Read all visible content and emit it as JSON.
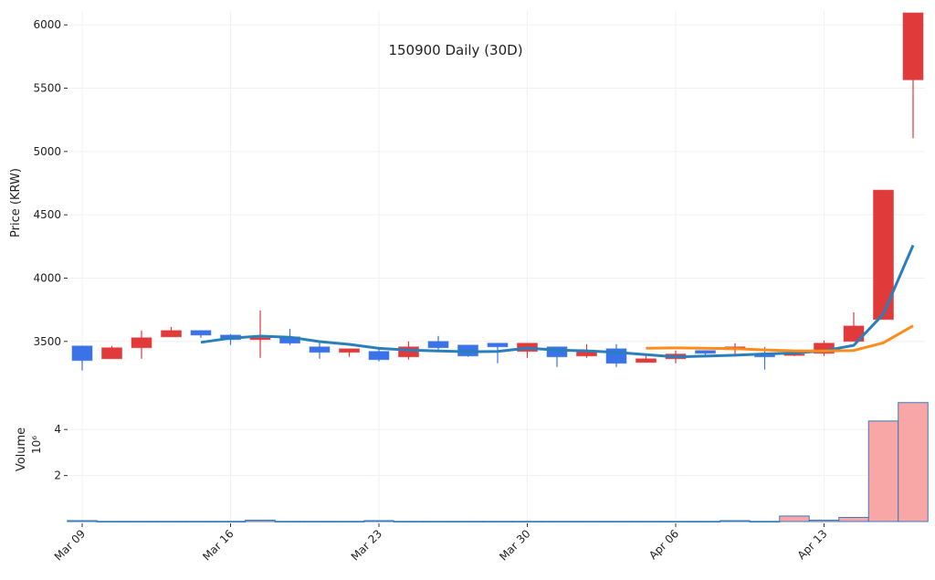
{
  "chart_data": {
    "type": "candlestick",
    "title": "150900 Daily (30D)",
    "ylabel": "Price (KRW)",
    "volume_label": "Volume",
    "volume_exponent_label": "10⁶",
    "dates": [
      "Mar 09",
      "Mar 10",
      "Mar 11",
      "Mar 12",
      "Mar 13",
      "Mar 16",
      "Mar 17",
      "Mar 18",
      "Mar 19",
      "Mar 20",
      "Mar 23",
      "Mar 24",
      "Mar 25",
      "Mar 26",
      "Mar 27",
      "Mar 30",
      "Mar 31",
      "Apr 01",
      "Apr 02",
      "Apr 03",
      "Apr 06",
      "Apr 07",
      "Apr 08",
      "Apr 09",
      "Apr 10",
      "Apr 13",
      "Apr 14",
      "Apr 15",
      "Apr 16"
    ],
    "x_tick_labels": [
      "Mar 09",
      "Mar 16",
      "Mar 23",
      "Mar 30",
      "Apr 06",
      "Apr 13"
    ],
    "open": [
      3464,
      3363,
      3450,
      3536,
      3586,
      3550,
      3514,
      3536,
      3457,
      3414,
      3421,
      3378,
      3500,
      3471,
      3486,
      3421,
      3457,
      3385,
      3442,
      3334,
      3363,
      3428,
      3435,
      3400,
      3392,
      3406,
      3500,
      3673,
      5566
    ],
    "high": [
      3464,
      3465,
      3586,
      3615,
      3586,
      3558,
      3745,
      3600,
      3493,
      3442,
      3457,
      3500,
      3543,
      3471,
      3486,
      3486,
      3457,
      3478,
      3478,
      3392,
      3428,
      3428,
      3486,
      3457,
      3400,
      3507,
      3730,
      4695,
      6095
    ],
    "low": [
      3270,
      3363,
      3363,
      3536,
      3529,
      3471,
      3370,
      3471,
      3363,
      3378,
      3342,
      3356,
      3435,
      3378,
      3327,
      3370,
      3298,
      3370,
      3298,
      3334,
      3327,
      3378,
      3400,
      3277,
      3385,
      3385,
      3500,
      3673,
      5105
    ],
    "close": [
      3349,
      3450,
      3529,
      3586,
      3550,
      3514,
      3529,
      3486,
      3414,
      3442,
      3356,
      3457,
      3450,
      3385,
      3457,
      3486,
      3378,
      3421,
      3327,
      3363,
      3400,
      3406,
      3457,
      3378,
      3400,
      3486,
      3622,
      4695,
      6095
    ],
    "volume_millions": [
      0.04,
      0.01,
      0.01,
      0.01,
      0.01,
      0.01,
      0.06,
      0.01,
      0.01,
      0.01,
      0.04,
      0.01,
      0.01,
      0.01,
      0.01,
      0.01,
      0.01,
      0.01,
      0.01,
      0.01,
      0.01,
      0.01,
      0.04,
      0.01,
      0.24,
      0.06,
      0.18,
      4.37,
      5.17
    ],
    "moving_averages": [
      {
        "window": 5,
        "color": "#2a7fba"
      },
      {
        "window": 20,
        "color": "#ff8c1a"
      }
    ],
    "price_y_ticks": [
      3500,
      4000,
      4500,
      5000,
      5500,
      6000
    ],
    "volume_y_ticks": [
      2,
      4
    ],
    "ylim": [
      3080,
      6110
    ],
    "volume_ylim": [
      0,
      5.2
    ],
    "grid": true,
    "colors": {
      "up": "#e03a3a",
      "down": "#3a72e8",
      "volume_fill": "#f9a6a6",
      "volume_edge": "#3b7bbf"
    }
  }
}
